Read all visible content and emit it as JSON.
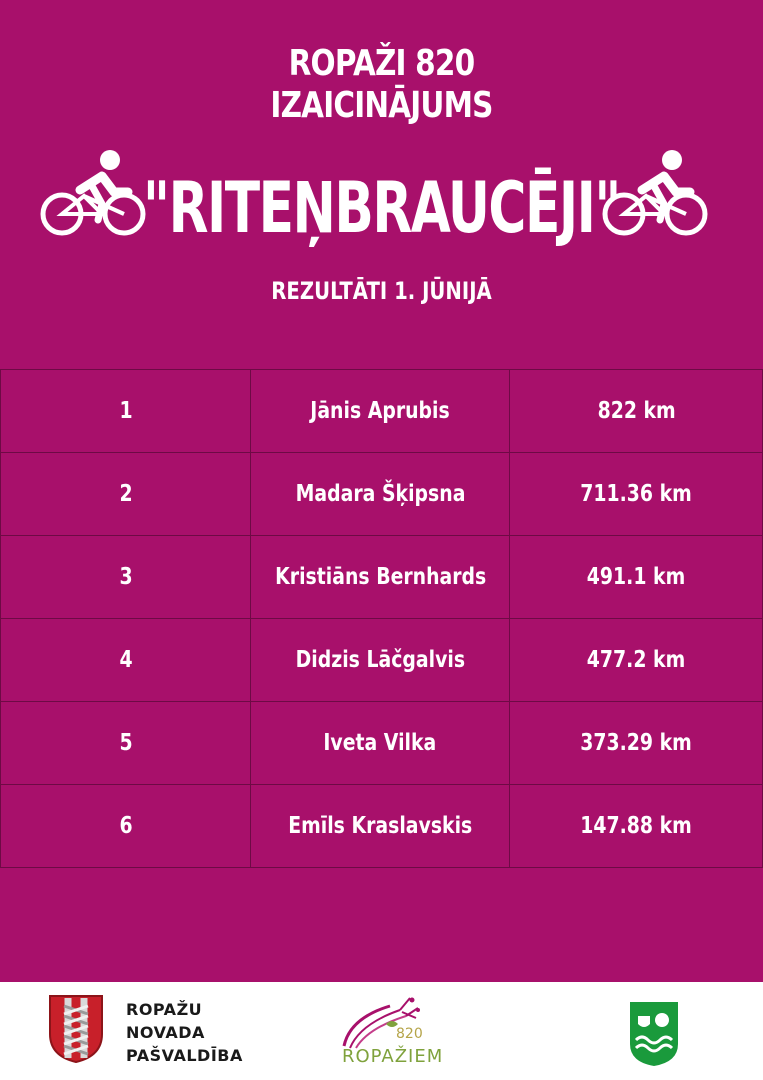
{
  "header": {
    "title_line1": "ROPAŽI 820",
    "title_line2": "IZAICINĀJUMS",
    "headline": "\"RITEŅBRAUCĒJI\"",
    "subtitle": "REZULTĀTI 1. JŪNIJĀ",
    "left_icon": "cyclist-icon",
    "right_icon": "cyclist-icon"
  },
  "results": [
    {
      "rank": "1",
      "name": "Jānis Aprubis",
      "distance": "822 km"
    },
    {
      "rank": "2",
      "name": "Madara Šķipsna",
      "distance": "711.36 km"
    },
    {
      "rank": "3",
      "name": "Kristiāns Bernhards",
      "distance": "491.1 km"
    },
    {
      "rank": "4",
      "name": "Didzis Lāčgalvis",
      "distance": "477.2 km"
    },
    {
      "rank": "5",
      "name": "Iveta Vilka",
      "distance": "373.29 km"
    },
    {
      "rank": "6",
      "name": "Emīls Kraslavskis",
      "distance": "147.88 km"
    }
  ],
  "footer": {
    "org_line1": "ROPAŽU",
    "org_line2": "NOVADA",
    "org_line3": "PAŠVALDĪBA",
    "anniversary_number": "820",
    "anniversary_word": "ROPAŽIEM",
    "crest_icon": "coat-of-arms-icon",
    "right_logo_icon": "sports-shield-icon"
  },
  "colors": {
    "background": "#a8106b",
    "table_border": "#6e0a45",
    "text": "#ffffff",
    "footer_bg": "#ffffff"
  }
}
